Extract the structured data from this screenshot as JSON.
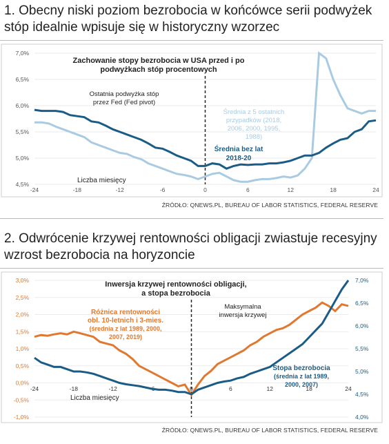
{
  "section1": {
    "heading": "1. Obecny niski poziom bezrobocia w końcówce serii podwyżek stóp idealnie wpisuje się w historyczny wzorzec",
    "source": "ŹRÓDŁO: QNEWS.PL, BUREAU OF LABOR STATISTICS, FEDERAL RESERVE"
  },
  "section2": {
    "heading": "2. Odwrócenie krzywej rentowności obligacji zwiastuje recesyjny wzrost bezrobocia na horyzoncie",
    "source": "ŹRÓDŁO: QNEWS.PL, BUREAU OF LABOR STATISTICS, FEDERAL RESERVE"
  },
  "colors": {
    "dark_blue": "#1a5c85",
    "light_blue": "#a9cbe2",
    "orange": "#e0782f",
    "axis_text": "#555555"
  },
  "chart_data": [
    {
      "type": "line",
      "title": "Zachowanie stopy bezrobocia w USA przed i po podwyżkach stóp procentowych",
      "title_lines": [
        "Zachowanie stopy bezrobocia w USA przed i po",
        "podwyżkach stóp procentowych"
      ],
      "xlabel": "Liczba miesięcy",
      "x_ticks": [
        "-24",
        "-18",
        "-12",
        "-6",
        "0",
        "6",
        "12",
        "18",
        "24"
      ],
      "y_ticks": [
        "4,5%",
        "5,0%",
        "5,5%",
        "6,0%",
        "6,5%",
        "7,0%"
      ],
      "xlim": [
        -24,
        24
      ],
      "ylim": [
        4.5,
        7.0
      ],
      "annotations": {
        "pivot_lines": [
          "Ostatnia podwyżka stóp",
          "przez Fed (Fed pivot)"
        ],
        "light_lines": [
          "Średnia z 5 ostatnich",
          "przypadków (2018,",
          "2006, 2000, 1995,",
          "1988)"
        ],
        "dark_lines": [
          "Średnia bez lat",
          "2018-20"
        ]
      },
      "series": [
        {
          "name": "Średnia z 5 ostatnich przypadków (2018, 2006, 2000, 1995, 1988)",
          "color": "#a9cbe2",
          "x": [
            -24,
            -23,
            -22,
            -21,
            -20,
            -19,
            -18,
            -17,
            -16,
            -15,
            -14,
            -13,
            -12,
            -11,
            -10,
            -9,
            -8,
            -7,
            -6,
            -5,
            -4,
            -3,
            -2,
            -1,
            0,
            1,
            2,
            3,
            4,
            5,
            6,
            7,
            8,
            9,
            10,
            11,
            12,
            13,
            14,
            15,
            16,
            17,
            18,
            19,
            20,
            21,
            22,
            23,
            24
          ],
          "values": [
            5.68,
            5.68,
            5.66,
            5.6,
            5.55,
            5.5,
            5.45,
            5.4,
            5.3,
            5.25,
            5.2,
            5.15,
            5.1,
            5.08,
            5.02,
            4.98,
            4.9,
            4.85,
            4.8,
            4.75,
            4.7,
            4.68,
            4.65,
            4.6,
            4.65,
            4.7,
            4.72,
            4.65,
            4.58,
            4.55,
            4.55,
            4.58,
            4.6,
            4.6,
            4.62,
            4.65,
            4.63,
            4.67,
            4.8,
            5.0,
            7.0,
            6.9,
            6.5,
            6.2,
            5.95,
            5.9,
            5.85,
            5.9,
            5.9
          ]
        },
        {
          "name": "Średnia bez lat 2018-20",
          "color": "#1a5c85",
          "x": [
            -24,
            -23,
            -22,
            -21,
            -20,
            -19,
            -18,
            -17,
            -16,
            -15,
            -14,
            -13,
            -12,
            -11,
            -10,
            -9,
            -8,
            -7,
            -6,
            -5,
            -4,
            -3,
            -2,
            -1,
            0,
            1,
            2,
            3,
            4,
            5,
            6,
            7,
            8,
            9,
            10,
            11,
            12,
            13,
            14,
            15,
            16,
            17,
            18,
            19,
            20,
            21,
            22,
            23,
            24
          ],
          "values": [
            5.92,
            5.9,
            5.9,
            5.9,
            5.88,
            5.82,
            5.8,
            5.78,
            5.7,
            5.68,
            5.62,
            5.55,
            5.5,
            5.45,
            5.4,
            5.35,
            5.28,
            5.2,
            5.18,
            5.12,
            5.05,
            5.0,
            4.95,
            4.85,
            4.85,
            4.9,
            4.88,
            4.8,
            4.85,
            4.88,
            4.87,
            4.88,
            4.88,
            4.9,
            4.9,
            4.92,
            4.95,
            5.0,
            5.05,
            5.05,
            5.1,
            5.2,
            5.28,
            5.35,
            5.38,
            5.5,
            5.55,
            5.7,
            5.72
          ]
        }
      ]
    },
    {
      "type": "line",
      "title": "Inwersja krzywej rentowności obligacji, a stopa bezrobocia",
      "title_lines": [
        "Inwersja krzywej rentowności obligacji,",
        "a stopa bezrobocia"
      ],
      "xlabel": "Liczba miesięcy",
      "x_ticks": [
        "-24",
        "-18",
        "-12",
        "-6",
        "0",
        "6",
        "12",
        "18",
        "24"
      ],
      "y_left_ticks": [
        "-1,0%",
        "-0,5%",
        "0,0%",
        "0,5%",
        "1,0%",
        "1,5%",
        "2,0%",
        "2,5%",
        "3,0%"
      ],
      "y_right_ticks": [
        "4,0%",
        "4,5%",
        "5,0%",
        "5,5%",
        "6,0%",
        "6,5%",
        "7,0%"
      ],
      "xlim": [
        -24,
        24
      ],
      "ylim_left": [
        -1.0,
        3.0
      ],
      "ylim_right": [
        4.0,
        7.0
      ],
      "annotations": {
        "inversion_lines": [
          "Maksymalna",
          "inwersja krzywej"
        ],
        "orange_lines": [
          "Różnica rentowności",
          "obl. 10-letnich i 3-mies.",
          "(średnia z lat 1989, 2000,",
          "2007, 2019)"
        ],
        "blue_lines": [
          "Stopa bezrobocia",
          "(średnia z lat 1989,",
          "2000, 2007)"
        ]
      },
      "series": [
        {
          "name": "Różnica rentowności obl. 10-letnich i 3-mies. (średnia z lat 1989, 2000, 2007, 2019)",
          "color": "#e0782f",
          "axis": "left",
          "x": [
            -24,
            -23,
            -22,
            -21,
            -20,
            -19,
            -18,
            -17,
            -16,
            -15,
            -14,
            -13,
            -12,
            -11,
            -10,
            -9,
            -8,
            -7,
            -6,
            -5,
            -4,
            -3,
            -2,
            -1,
            0,
            1,
            2,
            3,
            4,
            5,
            6,
            7,
            8,
            9,
            10,
            11,
            12,
            13,
            14,
            15,
            16,
            17,
            18,
            19,
            20,
            21,
            22,
            23,
            24
          ],
          "values": [
            1.35,
            1.4,
            1.38,
            1.42,
            1.45,
            1.42,
            1.5,
            1.45,
            1.4,
            1.35,
            1.2,
            1.15,
            1.1,
            0.95,
            0.85,
            0.7,
            0.5,
            0.4,
            0.3,
            0.2,
            0.1,
            0.0,
            -0.1,
            -0.05,
            -0.35,
            -0.05,
            0.2,
            0.35,
            0.55,
            0.65,
            0.75,
            0.85,
            0.95,
            1.1,
            1.2,
            1.35,
            1.45,
            1.55,
            1.6,
            1.7,
            1.85,
            2.0,
            2.1,
            2.2,
            2.35,
            2.25,
            2.1,
            2.3,
            2.25
          ]
        },
        {
          "name": "Stopa bezrobocia (średnia z lat 1989, 2000, 2007)",
          "color": "#1a5c85",
          "axis": "right",
          "x": [
            -24,
            -23,
            -22,
            -21,
            -20,
            -19,
            -18,
            -17,
            -16,
            -15,
            -14,
            -13,
            -12,
            -11,
            -10,
            -9,
            -8,
            -7,
            -6,
            -5,
            -4,
            -3,
            -2,
            -1,
            0,
            1,
            2,
            3,
            4,
            5,
            6,
            7,
            8,
            9,
            10,
            11,
            12,
            13,
            14,
            15,
            16,
            17,
            18,
            19,
            20,
            21,
            22,
            23,
            24
          ],
          "values": [
            5.3,
            5.2,
            5.15,
            5.1,
            5.1,
            5.05,
            5.0,
            5.0,
            4.98,
            4.95,
            4.9,
            4.85,
            4.8,
            4.75,
            4.72,
            4.7,
            4.68,
            4.65,
            4.62,
            4.6,
            4.6,
            4.58,
            4.55,
            4.55,
            4.5,
            4.6,
            4.65,
            4.7,
            4.75,
            4.78,
            4.8,
            4.85,
            4.88,
            4.95,
            5.0,
            5.05,
            5.1,
            5.2,
            5.3,
            5.4,
            5.5,
            5.6,
            5.75,
            5.9,
            6.05,
            6.3,
            6.55,
            6.8,
            7.0
          ]
        }
      ]
    }
  ]
}
